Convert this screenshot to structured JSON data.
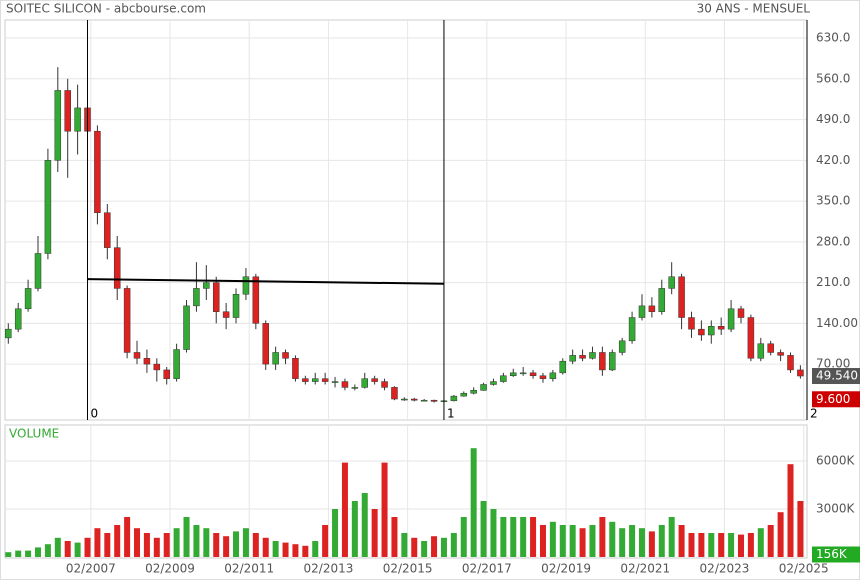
{
  "chart_data": [
    {
      "type": "candlestick",
      "title": "SOITEC SILICON - abcbourse.com",
      "subtitle": "30 ANS - MENSUEL",
      "x": [
        "01/2005",
        "04/2005",
        "07/2005",
        "10/2005",
        "01/2006",
        "04/2006",
        "07/2006",
        "10/2006",
        "01/2007",
        "04/2007",
        "07/2007",
        "10/2007",
        "01/2008",
        "04/2008",
        "07/2008",
        "10/2008",
        "01/2009",
        "04/2009",
        "07/2009",
        "10/2009",
        "01/2010",
        "04/2010",
        "07/2010",
        "10/2010",
        "01/2011",
        "04/2011",
        "07/2011",
        "10/2011",
        "01/2012",
        "04/2012",
        "07/2012",
        "10/2012",
        "01/2013",
        "04/2013",
        "07/2013",
        "10/2013",
        "01/2014",
        "04/2014",
        "07/2014",
        "10/2014",
        "01/2015",
        "04/2015",
        "07/2015",
        "10/2015",
        "01/2016",
        "04/2016",
        "07/2016",
        "10/2016",
        "01/2017",
        "04/2017",
        "07/2017",
        "10/2017",
        "01/2018",
        "04/2018",
        "07/2018",
        "10/2018",
        "01/2019",
        "04/2019",
        "07/2019",
        "10/2019",
        "01/2020",
        "04/2020",
        "07/2020",
        "10/2020",
        "01/2021",
        "04/2021",
        "07/2021",
        "10/2021",
        "01/2022",
        "04/2022",
        "07/2022",
        "10/2022",
        "01/2023",
        "04/2023",
        "07/2023",
        "10/2023",
        "01/2024",
        "04/2024",
        "07/2024",
        "10/2024",
        "01/2025"
      ],
      "open": [
        115,
        130,
        165,
        200,
        260,
        420,
        540,
        470,
        510,
        470,
        330,
        270,
        200,
        90,
        80,
        70,
        60,
        45,
        95,
        170,
        200,
        210,
        160,
        150,
        190,
        220,
        140,
        70,
        90,
        80,
        45,
        40,
        45,
        40,
        40,
        30,
        30,
        45,
        40,
        30,
        10,
        10,
        8,
        8,
        6,
        7,
        15,
        20,
        25,
        35,
        40,
        50,
        55,
        55,
        50,
        45,
        55,
        75,
        85,
        80,
        90,
        60,
        90,
        110,
        150,
        170,
        160,
        200,
        220,
        150,
        130,
        120,
        135,
        130,
        165,
        150,
        80,
        105,
        90,
        85,
        60
      ],
      "high": [
        140,
        175,
        215,
        290,
        440,
        580,
        560,
        550,
        540,
        480,
        345,
        290,
        205,
        110,
        95,
        80,
        65,
        105,
        180,
        245,
        240,
        220,
        175,
        200,
        235,
        225,
        145,
        100,
        95,
        85,
        50,
        55,
        55,
        48,
        45,
        35,
        55,
        50,
        45,
        32,
        13,
        12,
        10,
        9,
        9,
        17,
        23,
        30,
        38,
        45,
        55,
        62,
        65,
        60,
        55,
        60,
        80,
        95,
        95,
        100,
        100,
        95,
        115,
        160,
        190,
        185,
        215,
        245,
        225,
        160,
        145,
        145,
        150,
        180,
        170,
        155,
        115,
        110,
        95,
        90,
        68
      ],
      "low": [
        105,
        125,
        160,
        195,
        250,
        400,
        390,
        430,
        440,
        310,
        250,
        180,
        80,
        70,
        55,
        40,
        35,
        40,
        90,
        160,
        180,
        140,
        130,
        140,
        180,
        130,
        60,
        60,
        70,
        40,
        35,
        35,
        35,
        30,
        25,
        25,
        28,
        35,
        25,
        8,
        7,
        6,
        6,
        4,
        5,
        6,
        14,
        18,
        24,
        33,
        38,
        48,
        50,
        45,
        38,
        40,
        52,
        70,
        75,
        78,
        50,
        58,
        85,
        105,
        145,
        150,
        155,
        190,
        130,
        115,
        110,
        105,
        120,
        125,
        140,
        75,
        75,
        85,
        75,
        55,
        45
      ],
      "close": [
        130,
        165,
        200,
        260,
        420,
        540,
        470,
        510,
        470,
        330,
        270,
        200,
        90,
        80,
        70,
        60,
        45,
        95,
        170,
        200,
        210,
        160,
        150,
        190,
        220,
        140,
        70,
        90,
        80,
        45,
        40,
        45,
        40,
        40,
        30,
        30,
        45,
        40,
        30,
        10,
        10,
        8,
        8,
        6,
        7,
        15,
        20,
        25,
        35,
        40,
        50,
        55,
        55,
        50,
        45,
        55,
        75,
        85,
        80,
        90,
        60,
        90,
        110,
        150,
        170,
        160,
        200,
        220,
        150,
        130,
        120,
        135,
        130,
        165,
        150,
        80,
        105,
        90,
        85,
        60,
        49.54
      ],
      "up_color": "#33aa33",
      "down_color": "#dd2222",
      "xlim": [
        "12/2004",
        "03/2025"
      ],
      "ylim": [
        -26,
        661
      ],
      "yticks": [
        {
          "value": 630,
          "label": "630.0"
        },
        {
          "value": 560,
          "label": "560.0"
        },
        {
          "value": 490,
          "label": "490.0"
        },
        {
          "value": 420,
          "label": "420.0"
        },
        {
          "value": 350,
          "label": "350.0"
        },
        {
          "value": 280,
          "label": "280.0"
        },
        {
          "value": 210,
          "label": "210.0"
        },
        {
          "value": 140,
          "label": "140.00"
        },
        {
          "value": 70,
          "label": "70.00"
        }
      ],
      "xticks": [
        "02/2007",
        "02/2009",
        "02/2011",
        "02/2013",
        "02/2015",
        "02/2017",
        "02/2019",
        "02/2021",
        "02/2023",
        "02/2025"
      ],
      "grid": true,
      "markers": [
        {
          "x": "01/2007",
          "label": "0"
        },
        {
          "x": "01/2016",
          "label": "1"
        },
        {
          "x": "03/2025",
          "label": "2"
        }
      ],
      "trendline": {
        "x": [
          "01/2007",
          "01/2016"
        ],
        "values": [
          216,
          208
        ]
      },
      "value_boxes": [
        {
          "value": 49.54,
          "label": "49.540",
          "color": "#555555"
        },
        {
          "value": 9.6,
          "label": "9.600",
          "color": "#cc0000"
        }
      ]
    },
    {
      "type": "bar",
      "title": "VOLUME",
      "x": [
        "01/2005",
        "04/2005",
        "07/2005",
        "10/2005",
        "01/2006",
        "04/2006",
        "07/2006",
        "10/2006",
        "01/2007",
        "04/2007",
        "07/2007",
        "10/2007",
        "01/2008",
        "04/2008",
        "07/2008",
        "10/2008",
        "01/2009",
        "04/2009",
        "07/2009",
        "10/2009",
        "01/2010",
        "04/2010",
        "07/2010",
        "10/2010",
        "01/2011",
        "04/2011",
        "07/2011",
        "10/2011",
        "01/2012",
        "04/2012",
        "07/2012",
        "10/2012",
        "01/2013",
        "04/2013",
        "07/2013",
        "10/2013",
        "01/2014",
        "04/2014",
        "07/2014",
        "10/2014",
        "01/2015",
        "04/2015",
        "07/2015",
        "10/2015",
        "01/2016",
        "04/2016",
        "07/2016",
        "10/2016",
        "01/2017",
        "04/2017",
        "07/2017",
        "10/2017",
        "01/2018",
        "04/2018",
        "07/2018",
        "10/2018",
        "01/2019",
        "04/2019",
        "07/2019",
        "10/2019",
        "01/2020",
        "04/2020",
        "07/2020",
        "10/2020",
        "01/2021",
        "04/2021",
        "07/2021",
        "10/2021",
        "01/2022",
        "04/2022",
        "07/2022",
        "10/2022",
        "01/2023",
        "04/2023",
        "07/2023",
        "10/2023",
        "01/2024",
        "04/2024",
        "07/2024",
        "10/2024",
        "01/2025"
      ],
      "values": [
        300,
        400,
        400,
        600,
        800,
        1200,
        1000,
        900,
        1200,
        1800,
        1500,
        2000,
        2500,
        1800,
        1500,
        1200,
        1500,
        1800,
        2500,
        2000,
        1800,
        1500,
        1300,
        1600,
        1800,
        1500,
        1200,
        1000,
        900,
        800,
        700,
        1000,
        2000,
        3000,
        5900,
        3500,
        4000,
        3000,
        5900,
        2500,
        1500,
        1200,
        1000,
        1300,
        1200,
        1500,
        2500,
        6800,
        3500,
        3000,
        2500,
        2500,
        2500,
        2500,
        2000,
        2200,
        2000,
        2000,
        1800,
        2000,
        2500,
        2200,
        1800,
        2000,
        1800,
        1600,
        2000,
        2500,
        2000,
        1500,
        1500,
        1500,
        1500,
        1500,
        1400,
        1500,
        1800,
        2000,
        2800,
        5800,
        3500
      ],
      "xlim": [
        "12/2004",
        "03/2025"
      ],
      "ylim": [
        0,
        8250
      ],
      "yticks": [
        {
          "value": 6000,
          "label": "6000K"
        },
        {
          "value": 3000,
          "label": "3000K"
        }
      ],
      "xticks": [
        "02/2007",
        "02/2009",
        "02/2011",
        "02/2013",
        "02/2015",
        "02/2017",
        "02/2019",
        "02/2021",
        "02/2023",
        "02/2025"
      ],
      "grid": true,
      "value_boxes": [
        {
          "value": 156,
          "label": "156K",
          "color": "#22aa22"
        }
      ]
    }
  ]
}
